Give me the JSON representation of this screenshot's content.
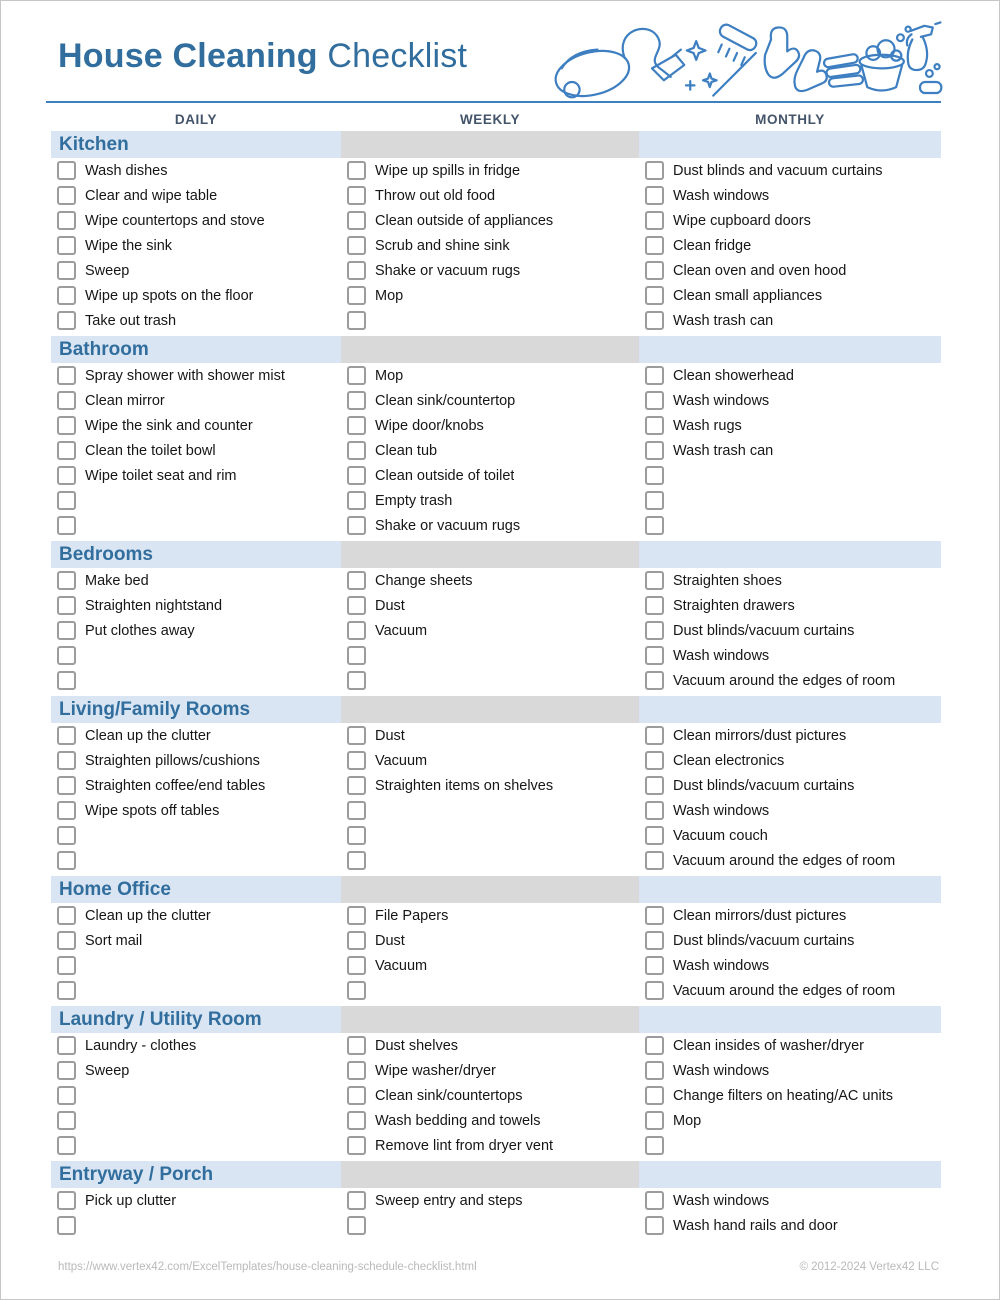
{
  "title": {
    "primary": "House Cleaning",
    "secondary": "Checklist"
  },
  "columns": [
    "DAILY",
    "WEEKLY",
    "MONTHLY"
  ],
  "header_icons": [
    "vacuum-icon",
    "sparkles-icon",
    "brush-icon",
    "gloves-icon",
    "towels-icon",
    "bucket-icon",
    "spray-bottle-icon",
    "sponge-icon"
  ],
  "colors": {
    "accent": "#316e9e",
    "rule": "#3e7fc1",
    "column_header": "#44546a",
    "section_bg": "#d9e5f2",
    "gray_band": "#d9d9d9",
    "checkbox_border": "#9c9c9c",
    "footer_text": "#b9b9b9"
  },
  "sections": [
    {
      "name": "Kitchen",
      "rows": [
        [
          "Wash dishes",
          "Wipe up spills in fridge",
          "Dust blinds and vacuum curtains"
        ],
        [
          "Clear and wipe table",
          "Throw out old food",
          "Wash windows"
        ],
        [
          "Wipe countertops and stove",
          "Clean outside of appliances",
          "Wipe cupboard doors"
        ],
        [
          "Wipe the sink",
          "Scrub and shine sink",
          "Clean fridge"
        ],
        [
          "Sweep",
          "Shake or vacuum rugs",
          "Clean oven and oven hood"
        ],
        [
          "Wipe up spots on the floor",
          "Mop",
          "Clean small appliances"
        ],
        [
          "Take out trash",
          "",
          "Wash trash can"
        ]
      ]
    },
    {
      "name": "Bathroom",
      "rows": [
        [
          "Spray shower with shower mist",
          "Mop",
          "Clean showerhead"
        ],
        [
          "Clean mirror",
          "Clean sink/countertop",
          "Wash windows"
        ],
        [
          "Wipe the sink and counter",
          "Wipe door/knobs",
          "Wash rugs"
        ],
        [
          "Clean the toilet bowl",
          "Clean tub",
          "Wash trash can"
        ],
        [
          "Wipe toilet seat and rim",
          "Clean outside of toilet",
          ""
        ],
        [
          "",
          "Empty trash",
          ""
        ],
        [
          "",
          "Shake or vacuum rugs",
          ""
        ]
      ]
    },
    {
      "name": "Bedrooms",
      "rows": [
        [
          "Make bed",
          "Change sheets",
          "Straighten shoes"
        ],
        [
          "Straighten nightstand",
          "Dust",
          "Straighten drawers"
        ],
        [
          "Put clothes away",
          "Vacuum",
          "Dust blinds/vacuum curtains"
        ],
        [
          "",
          "",
          "Wash windows"
        ],
        [
          "",
          "",
          "Vacuum around the edges of room"
        ]
      ]
    },
    {
      "name": "Living/Family Rooms",
      "rows": [
        [
          "Clean up the clutter",
          "Dust",
          "Clean mirrors/dust pictures"
        ],
        [
          "Straighten pillows/cushions",
          "Vacuum",
          "Clean electronics"
        ],
        [
          "Straighten coffee/end tables",
          "Straighten items on shelves",
          "Dust blinds/vacuum curtains"
        ],
        [
          "Wipe spots off tables",
          "",
          "Wash windows"
        ],
        [
          "",
          "",
          "Vacuum couch"
        ],
        [
          "",
          "",
          "Vacuum around the edges of room"
        ]
      ]
    },
    {
      "name": "Home Office",
      "rows": [
        [
          "Clean up the clutter",
          "File Papers",
          "Clean mirrors/dust pictures"
        ],
        [
          "Sort mail",
          "Dust",
          "Dust blinds/vacuum curtains"
        ],
        [
          "",
          "Vacuum",
          "Wash windows"
        ],
        [
          "",
          "",
          "Vacuum around the edges of room"
        ]
      ]
    },
    {
      "name": "Laundry / Utility Room",
      "rows": [
        [
          "Laundry - clothes",
          "Dust shelves",
          "Clean insides of washer/dryer"
        ],
        [
          "Sweep",
          "Wipe washer/dryer",
          "Wash windows"
        ],
        [
          "",
          "Clean sink/countertops",
          "Change filters on heating/AC units"
        ],
        [
          "",
          "Wash bedding and towels",
          "Mop"
        ],
        [
          "",
          "Remove lint from dryer vent",
          ""
        ]
      ]
    },
    {
      "name": "Entryway / Porch",
      "rows": [
        [
          "Pick up clutter",
          "Sweep entry and steps",
          "Wash windows"
        ],
        [
          "",
          "",
          "Wash hand rails and door"
        ]
      ]
    }
  ],
  "footer": {
    "url": "https://www.vertex42.com/ExcelTemplates/house-cleaning-schedule-checklist.html",
    "copyright": "© 2012-2024 Vertex42 LLC"
  }
}
